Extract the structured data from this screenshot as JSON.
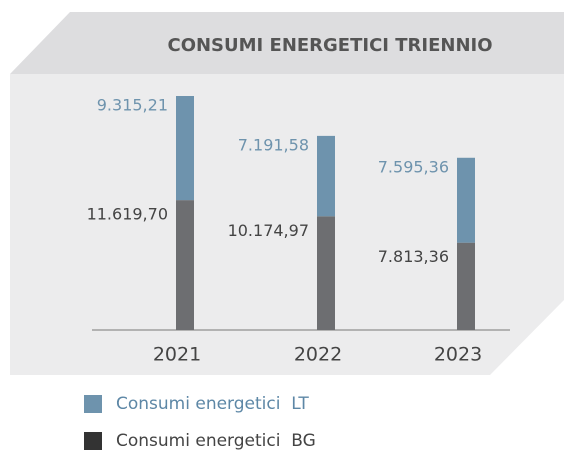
{
  "chart_data": {
    "type": "bar",
    "stacked": true,
    "title": "CONSUMI ENERGETICI TRIENNIO",
    "categories": [
      "2021",
      "2022",
      "2023"
    ],
    "series": [
      {
        "name": "Consumi energetici  BG",
        "color": "#6d6e71",
        "values": [
          11619.7,
          10174.97,
          7813.36
        ],
        "value_labels": [
          "11.619,70",
          "10.174,97",
          "7.813,36"
        ]
      },
      {
        "name": "Consumi energetici  LT",
        "color": "#6e93ad",
        "values": [
          9315.21,
          7191.58,
          7595.36
        ],
        "value_labels": [
          "9.315,21",
          "7.191,58",
          "7.595,36"
        ]
      }
    ]
  }
}
